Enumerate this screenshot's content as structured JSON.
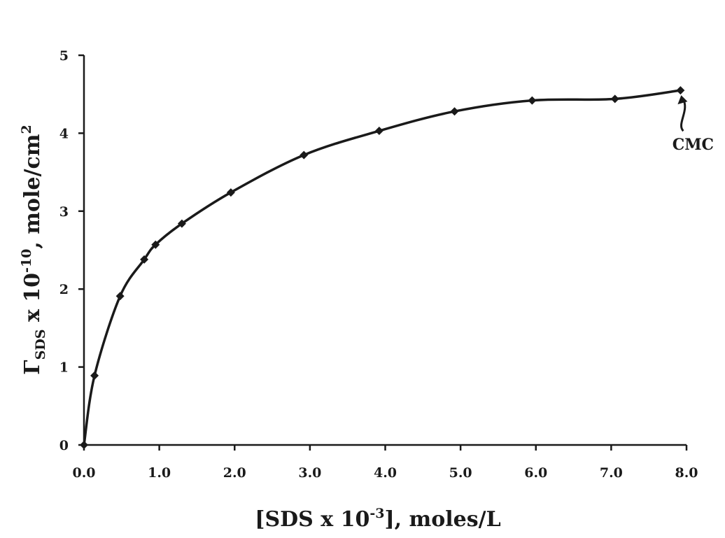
{
  "chart_data": {
    "type": "line",
    "xlabel": {
      "pre": "[SDS x 10",
      "sup": "-3",
      "post": "], moles/L"
    },
    "ylabel": {
      "greek": "Γ",
      "sub": "SDS",
      "mid": " x 10",
      "sup": "-10",
      "post": ", mole/cm",
      "sup2": "2"
    },
    "xlim": [
      0,
      8
    ],
    "ylim": [
      0,
      5
    ],
    "x_ticks": [
      0,
      1,
      2,
      3,
      4,
      5,
      6,
      7,
      8
    ],
    "x_tick_labels": [
      "0.0",
      "1.0",
      "2.0",
      "3.0",
      "4.0",
      "5.0",
      "6.0",
      "7.0",
      "8.0"
    ],
    "y_ticks": [
      0,
      1,
      2,
      3,
      4,
      5
    ],
    "y_tick_labels": [
      "0",
      "1",
      "2",
      "3",
      "4",
      "5"
    ],
    "grid": false,
    "legend": "none",
    "marker": "diamond",
    "line_color": "#1a1a1a",
    "series": [
      {
        "x": [
          0.0,
          0.14,
          0.48,
          0.8,
          0.95,
          1.3,
          1.95,
          2.92,
          3.92,
          4.92,
          5.95,
          7.05,
          7.92
        ],
        "y": [
          0.0,
          0.89,
          1.91,
          2.38,
          2.57,
          2.84,
          3.24,
          3.72,
          4.03,
          4.28,
          4.42,
          4.44,
          4.55
        ]
      }
    ],
    "annotations": [
      {
        "text": "CMC",
        "x": 7.92,
        "y": 4.55
      }
    ]
  }
}
